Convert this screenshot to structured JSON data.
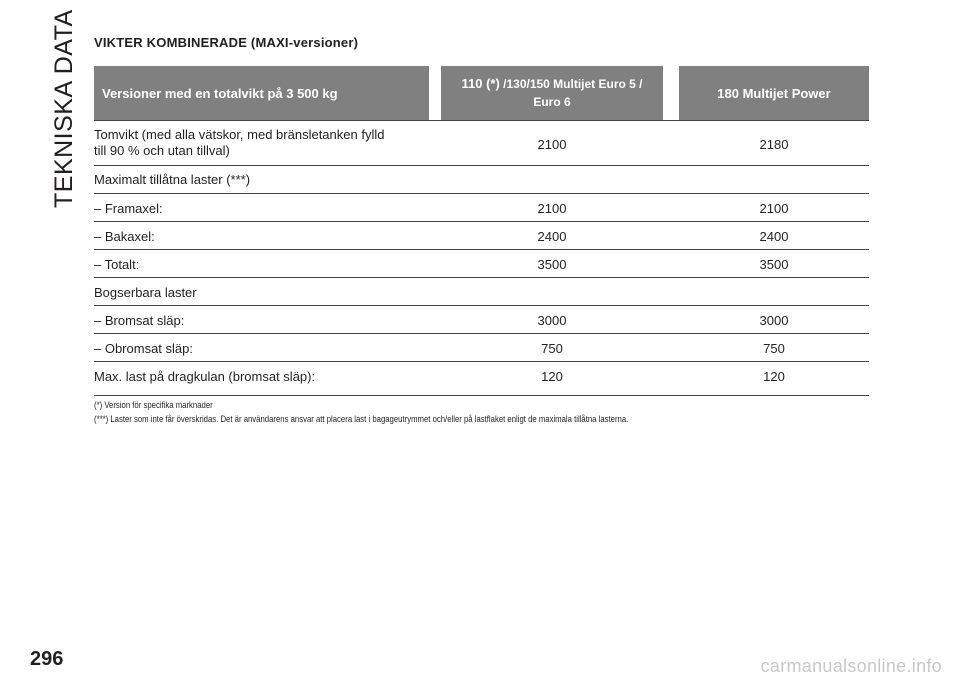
{
  "side_title": "TEKNISKA DATA",
  "section_title": "VIKTER KOMBINERADE (MAXI-versioner)",
  "header": {
    "col1": "Versioner med en totalvikt på 3 500 kg",
    "col2_line1_big": "110 (*)",
    "col2_line1_small": " /130/150 Multijet Euro 5 /",
    "col2_line2": "Euro 6",
    "col3": "180 Multijet Power"
  },
  "rows": [
    {
      "label_line1": "Tomvikt (med alla vätskor, med bränsletanken fylld",
      "label_line2": "till 90 % och utan tillval)",
      "v1": "2100",
      "v2": "2180"
    },
    {
      "label": "Maximalt tillåtna laster (***)",
      "v1": "",
      "v2": ""
    },
    {
      "label": "– Framaxel:",
      "v1": "2100",
      "v2": "2100"
    },
    {
      "label": "– Bakaxel:",
      "v1": "2400",
      "v2": "2400"
    },
    {
      "label": "– Totalt:",
      "v1": "3500",
      "v2": "3500"
    },
    {
      "label": "Bogserbara laster",
      "v1": "",
      "v2": ""
    },
    {
      "label": "– Bromsat släp:",
      "v1": "3000",
      "v2": "3000"
    },
    {
      "label": "– Obromsat släp:",
      "v1": "750",
      "v2": "750"
    },
    {
      "label": "Max. last på dragkulan (bromsat släp):",
      "v1": "120",
      "v2": "120"
    }
  ],
  "footnotes": [
    "(*) Version för specifika marknader",
    "(***) Laster som inte får överskridas. Det är användarens ansvar att placera last i bagageutrymmet och/eller på lastflaket enligt de maximala tillåtna lasterna."
  ],
  "page_number": "296",
  "watermark": "carmanualsonline.info"
}
